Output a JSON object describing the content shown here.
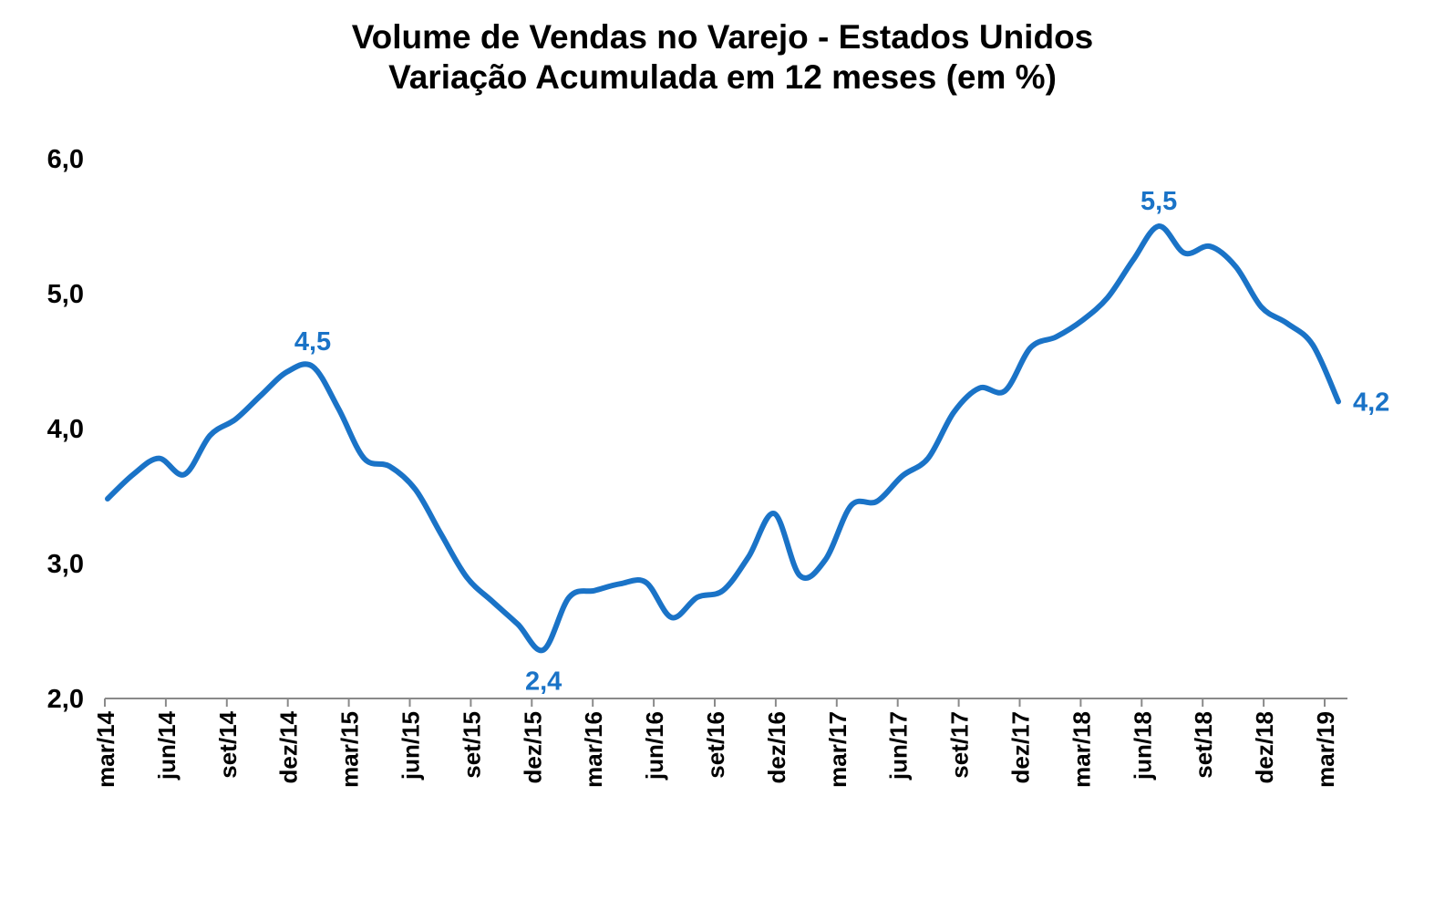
{
  "chart_data": {
    "type": "line",
    "title": "Volume de Vendas no Varejo - Estados Unidos",
    "subtitle": "Variação Acumulada em 12 meses (em %)",
    "xlabel": "",
    "ylabel": "",
    "ylim": [
      2.0,
      6.0
    ],
    "yticks": [
      "2,0",
      "3,0",
      "4,0",
      "5,0",
      "6,0"
    ],
    "xticks": [
      "mar/14",
      "jun/14",
      "set/14",
      "dez/14",
      "mar/15",
      "jun/15",
      "set/15",
      "dez/15",
      "mar/16",
      "jun/16",
      "set/16",
      "dez/16",
      "mar/17",
      "jun/17",
      "set/17",
      "dez/17",
      "mar/18",
      "jun/18",
      "set/18",
      "dez/18",
      "mar/19"
    ],
    "grid": false,
    "legend": "none",
    "color": "#1a73c7",
    "series": [
      {
        "values": [
          3.48,
          3.66,
          3.78,
          3.66,
          3.95,
          4.07,
          4.25,
          4.42,
          4.46,
          4.15,
          3.78,
          3.72,
          3.55,
          3.22,
          2.9,
          2.72,
          2.55,
          2.36,
          2.75,
          2.8,
          2.85,
          2.86,
          2.6,
          2.75,
          2.8,
          3.05,
          3.37,
          2.91,
          3.03,
          3.43,
          3.46,
          3.65,
          3.78,
          4.12,
          4.3,
          4.28,
          4.6,
          4.68,
          4.8,
          4.97,
          5.25,
          5.5,
          5.3,
          5.35,
          5.2,
          4.9,
          4.78,
          4.62,
          4.2
        ]
      }
    ],
    "annotations": [
      {
        "index": 8,
        "label": "4,5"
      },
      {
        "index": 17,
        "label": "2,4"
      },
      {
        "index": 41,
        "label": "5,5"
      },
      {
        "index": 48,
        "label": "4,2"
      }
    ]
  }
}
